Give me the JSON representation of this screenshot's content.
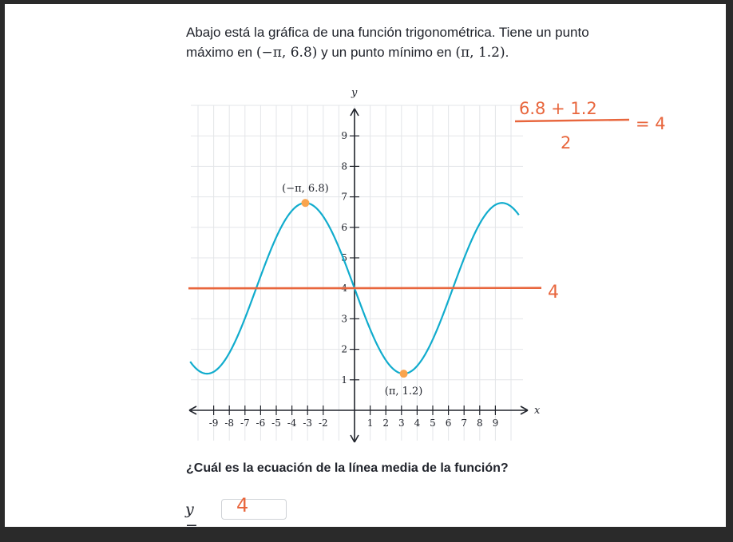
{
  "problem": {
    "line1": "Abajo está la gráfica de una función trigonométrica. Tiene un punto",
    "line2_before": "máximo en ",
    "max_point": "(−π, 6.8)",
    "line2_middle": " y un punto mínimo en ",
    "min_point": "(π, 1.2)",
    "line2_after": "."
  },
  "chart_data": {
    "type": "line",
    "xlabel": "x",
    "ylabel": "y",
    "xlim": [
      -10.5,
      10.5
    ],
    "ylim": [
      0,
      10
    ],
    "x_ticks": [
      -9,
      -8,
      -7,
      -6,
      -5,
      -4,
      -3,
      -2,
      1,
      2,
      3,
      4,
      5,
      6,
      7,
      8,
      9
    ],
    "y_ticks": [
      1,
      2,
      3,
      4,
      5,
      6,
      7,
      8,
      9
    ],
    "grid": true,
    "series": [
      {
        "function": "y = 4 - 2.8·sin(x/2)",
        "color": "#11accd",
        "x_range": [
          -10.5,
          10.5
        ]
      },
      {
        "function": "y = 4",
        "color": "#e8663d",
        "hand_label": "4"
      }
    ],
    "points": [
      {
        "x": -3.14159,
        "y": 6.8,
        "label": "(−π, 6.8)",
        "color": "#f9a44d"
      },
      {
        "x": 3.14159,
        "y": 1.2,
        "label": "(π, 1.2)",
        "color": "#f9a44d"
      }
    ]
  },
  "annotation": {
    "numerator": "6.8 + 1.2",
    "denominator": "2",
    "result": "= 4",
    "color": "#e8663d"
  },
  "question": "¿Cuál es la ecuación de la línea media de la función?",
  "answer": {
    "variable": "y =",
    "value": "4"
  }
}
